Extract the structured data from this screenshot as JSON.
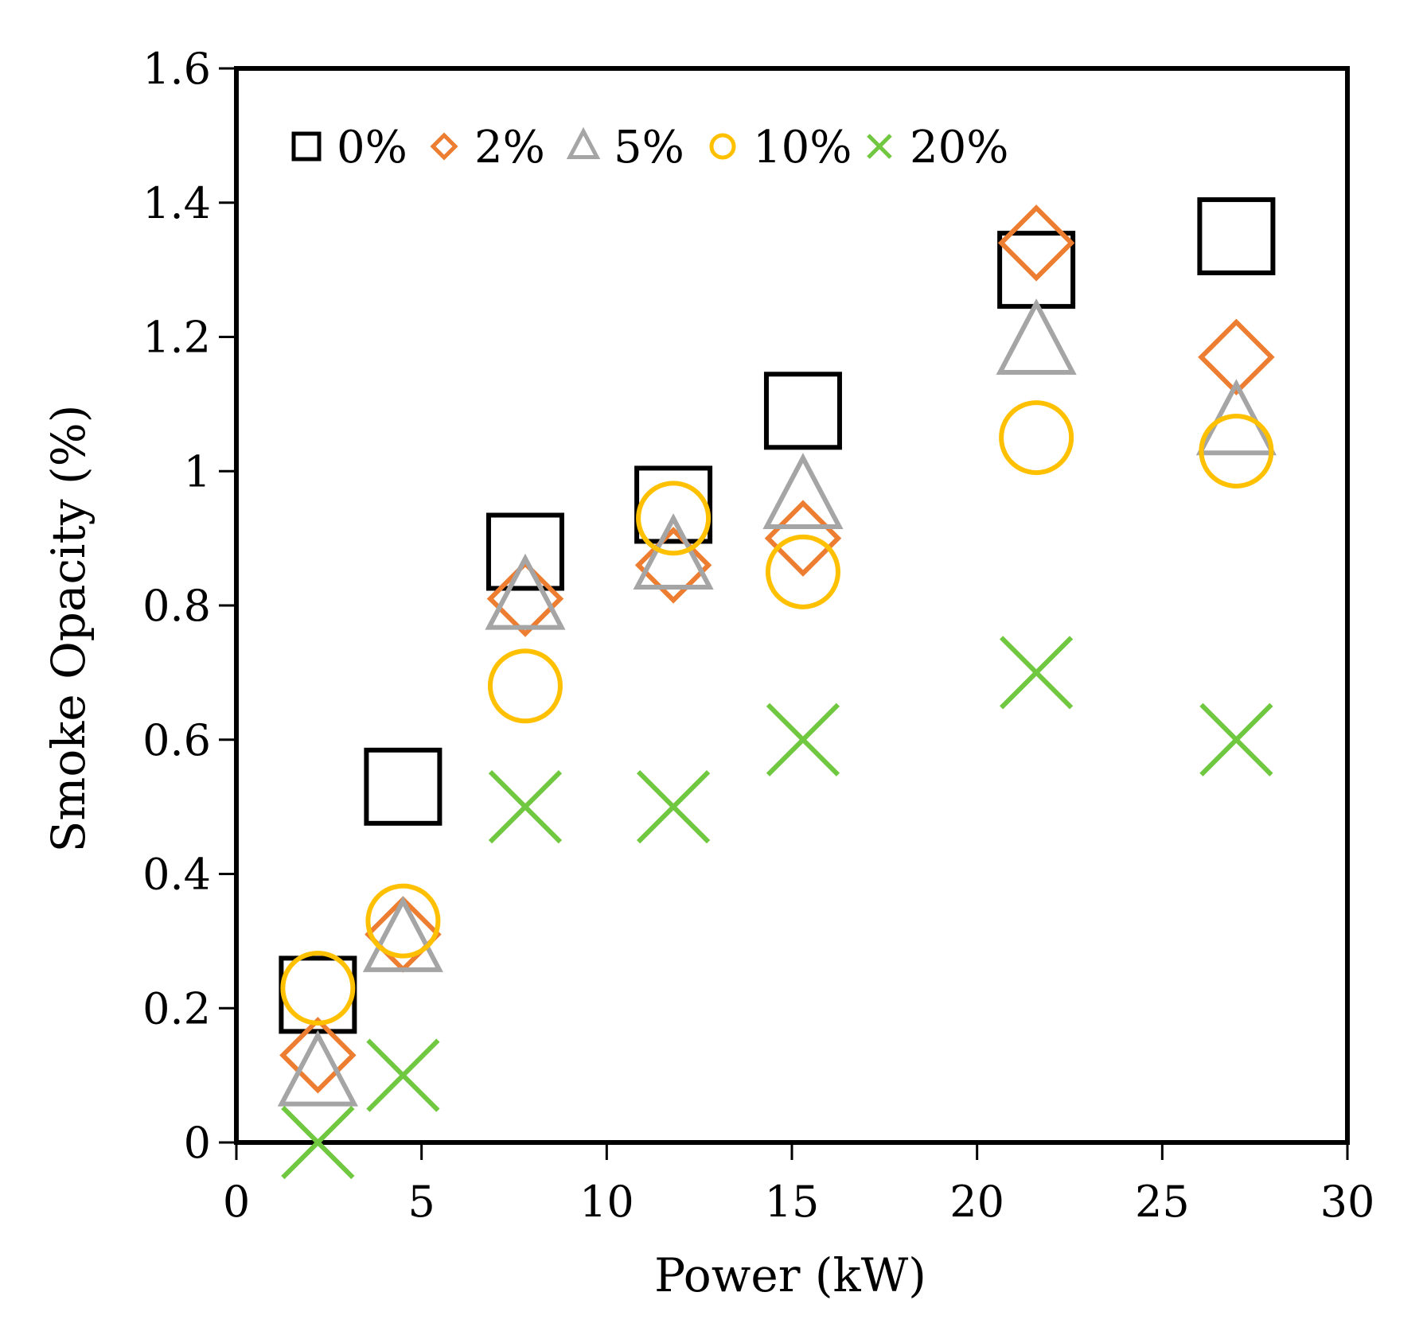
{
  "chart_data": {
    "type": "scatter",
    "title": "",
    "xlabel": "Power (kW)",
    "ylabel": "Smoke Opacity (%)",
    "xlim": [
      0,
      30
    ],
    "ylim": [
      0,
      1.6
    ],
    "xticks": [
      0,
      5,
      10,
      15,
      20,
      25,
      30
    ],
    "yticks": [
      0,
      0.2,
      0.4,
      0.6,
      0.8,
      1,
      1.2,
      1.4,
      1.6
    ],
    "xtick_labels": [
      "0",
      "5",
      "10",
      "15",
      "20",
      "25",
      "30"
    ],
    "ytick_labels": [
      "0",
      "0.2",
      "0.4",
      "0.6",
      "0.8",
      "1",
      "1.2",
      "1.4",
      "1.6"
    ],
    "grid": false,
    "legend_position": "top-left",
    "series": [
      {
        "name": "0%",
        "marker": "square",
        "color": "#000000",
        "x": [
          2.2,
          4.5,
          7.8,
          11.8,
          15.3,
          21.6,
          27
        ],
        "y": [
          0.22,
          0.53,
          0.88,
          0.95,
          1.09,
          1.3,
          1.35
        ]
      },
      {
        "name": "2%",
        "marker": "diamond",
        "color": "#ED7D31",
        "x": [
          2.2,
          4.5,
          7.8,
          11.8,
          15.3,
          21.6,
          27
        ],
        "y": [
          0.13,
          0.31,
          0.81,
          0.86,
          0.9,
          1.34,
          1.17
        ]
      },
      {
        "name": "5%",
        "marker": "triangle",
        "color": "#A5A5A5",
        "x": [
          2.2,
          4.5,
          7.8,
          11.8,
          15.3,
          21.6,
          27
        ],
        "y": [
          0.1,
          0.3,
          0.81,
          0.87,
          0.96,
          1.19,
          1.07
        ]
      },
      {
        "name": "10%",
        "marker": "circle",
        "color": "#FFC000",
        "x": [
          2.2,
          4.5,
          7.8,
          11.8,
          15.3,
          21.6,
          27
        ],
        "y": [
          0.23,
          0.33,
          0.68,
          0.93,
          0.85,
          1.05,
          1.03
        ]
      },
      {
        "name": "20%",
        "marker": "x",
        "color": "#70C840",
        "x": [
          2.2,
          4.5,
          7.8,
          11.8,
          15.3,
          21.6,
          27
        ],
        "y": [
          0.0,
          0.1,
          0.5,
          0.5,
          0.6,
          0.7,
          0.6
        ]
      }
    ]
  }
}
